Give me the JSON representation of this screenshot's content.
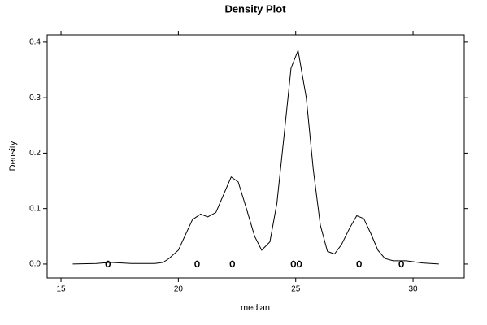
{
  "chart_data": {
    "type": "line",
    "title": "Density Plot",
    "x_label": "median",
    "y_label": "Density",
    "x": [
      15.5,
      16.5,
      17.1,
      18.0,
      19.0,
      19.35,
      19.6,
      20.0,
      20.6,
      20.95,
      21.25,
      21.6,
      22.25,
      22.55,
      22.9,
      23.25,
      23.55,
      23.9,
      24.2,
      24.5,
      24.8,
      25.1,
      25.45,
      25.75,
      26.05,
      26.35,
      26.65,
      26.95,
      27.3,
      27.6,
      27.9,
      28.2,
      28.5,
      28.8,
      29.15,
      29.7,
      30.4,
      31.1
    ],
    "values": [
      0.0,
      0.001,
      0.003,
      0.001,
      0.001,
      0.003,
      0.01,
      0.025,
      0.08,
      0.09,
      0.085,
      0.093,
      0.157,
      0.148,
      0.1,
      0.05,
      0.025,
      0.04,
      0.11,
      0.23,
      0.353,
      0.385,
      0.3,
      0.17,
      0.07,
      0.023,
      0.018,
      0.035,
      0.065,
      0.087,
      0.082,
      0.055,
      0.025,
      0.01,
      0.006,
      0.006,
      0.002,
      0.0
    ],
    "color": "#000000",
    "points": {
      "x": [
        17.0,
        20.8,
        22.3,
        24.9,
        25.15,
        27.7,
        29.5
      ],
      "y": [
        0,
        0,
        0,
        0,
        0,
        0,
        0
      ]
    },
    "xlim": [
      14.41,
      32.18
    ],
    "ylim": [
      -0.025,
      0.413
    ],
    "xticks": [
      15,
      20,
      25,
      30
    ],
    "yticks": [
      {
        "value": 0,
        "label": "0.0"
      },
      0.1,
      0.2,
      0.3,
      0.4
    ]
  }
}
